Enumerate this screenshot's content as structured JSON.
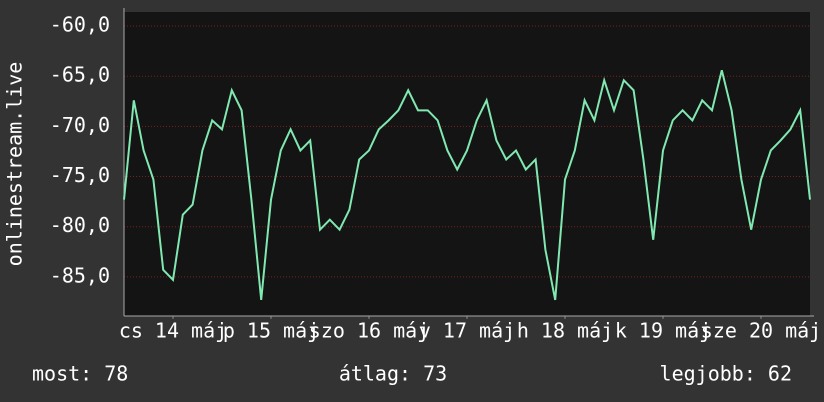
{
  "chart_data": {
    "type": "line",
    "y_label": "onlinestream.live",
    "xlim": [
      0,
      7
    ],
    "xticks": [
      {
        "value": 0.5,
        "label": "cs 14 máj"
      },
      {
        "value": 1.5,
        "label": "p 15 máj"
      },
      {
        "value": 2.5,
        "label": "szo 16 máj"
      },
      {
        "value": 3.5,
        "label": "v 17 máj"
      },
      {
        "value": 4.5,
        "label": "h 18 máj"
      },
      {
        "value": 5.5,
        "label": "k 19 máj"
      },
      {
        "value": 6.5,
        "label": "sze 20 máj"
      }
    ],
    "ylim": [
      -88.9,
      -58.6
    ],
    "yticks": [
      {
        "value": -60,
        "label": "-60,0"
      },
      {
        "value": -65,
        "label": "-65,0"
      },
      {
        "value": -70,
        "label": "-70,0"
      },
      {
        "value": -75,
        "label": "-75,0"
      },
      {
        "value": -80,
        "label": "-80,0"
      },
      {
        "value": -85,
        "label": "-85,0"
      }
    ],
    "grid": true,
    "x": [
      0,
      0.1,
      0.2,
      0.3,
      0.4,
      0.5,
      0.6,
      0.7,
      0.8,
      0.9,
      1,
      1.1,
      1.2,
      1.3,
      1.4,
      1.5,
      1.6,
      1.7,
      1.8,
      1.9,
      2,
      2.1,
      2.2,
      2.3,
      2.4,
      2.5,
      2.6,
      2.7,
      2.8,
      2.9,
      3,
      3.1,
      3.2,
      3.3,
      3.4,
      3.5,
      3.6,
      3.7,
      3.8,
      3.9,
      4,
      4.1,
      4.2,
      4.3,
      4.4,
      4.5,
      4.6,
      4.7,
      4.8,
      4.9,
      5,
      5.1,
      5.2,
      5.3,
      5.4,
      5.5,
      5.6,
      5.7,
      5.8,
      5.9,
      6,
      6.1,
      6.2,
      6.3,
      6.4,
      6.5,
      6.6,
      6.7,
      6.8,
      6.9,
      7
    ],
    "series": [
      {
        "name": "onlinestream.live",
        "color": "#80e8b0",
        "values": [
          -77.3,
          -67.4,
          -72.4,
          -75.3,
          -84.3,
          -85.3,
          -78.8,
          -77.8,
          -72.4,
          -69.4,
          -70.3,
          -66.4,
          -68.4,
          -77.3,
          -87.3,
          -77.3,
          -72.4,
          -70.3,
          -72.4,
          -71.4,
          -80.3,
          -79.3,
          -80.3,
          -78.3,
          -73.3,
          -72.4,
          -70.3,
          -69.4,
          -68.4,
          -66.4,
          -68.4,
          -68.4,
          -69.4,
          -72.4,
          -74.3,
          -72.4,
          -69.4,
          -67.4,
          -71.4,
          -73.3,
          -72.4,
          -74.3,
          -73.3,
          -82.3,
          -87.3,
          -75.3,
          -72.4,
          -67.4,
          -69.4,
          -65.4,
          -68.4,
          -65.4,
          -66.4,
          -73.3,
          -81.3,
          -72.4,
          -69.4,
          -68.4,
          -69.4,
          -67.4,
          -68.4,
          -64.4,
          -68.4,
          -75.3,
          -80.3,
          -75.3,
          -72.4,
          -71.4,
          -70.3,
          -68.4,
          -77.3
        ]
      }
    ],
    "footer": {
      "now": "most: 78",
      "average": "átlag: 73",
      "best": "legjobb: 62"
    }
  }
}
